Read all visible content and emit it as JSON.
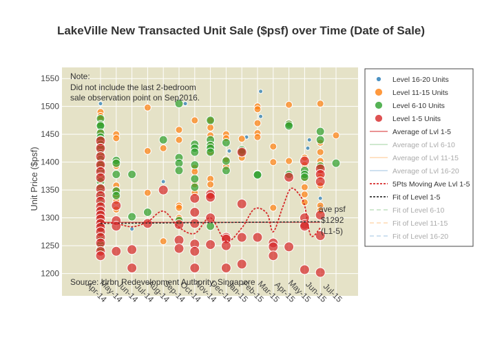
{
  "chart_data": {
    "type": "scatter",
    "title": "LakeVille New Transacted Unit Sale ($psf) over Time (Date of Sale)",
    "ylabel": "Unit Price ($psf)",
    "xlabel": "",
    "ylim": [
      1160,
      1570
    ],
    "yticks": [
      1200,
      1250,
      1300,
      1350,
      1400,
      1450,
      1500,
      1550
    ],
    "x_categories": [
      "Apr-14",
      "May-14",
      "Jun-14",
      "Jul-14",
      "Aug-14",
      "Sep-14",
      "Oct-14",
      "Nov-14",
      "Dec-14",
      "Jan-15",
      "Feb-15",
      "Mar-15",
      "Apr-15",
      "May-15",
      "Jun-15",
      "Jul-15"
    ],
    "background_color": "#e5e2c7",
    "note": {
      "line1": "Note:",
      "line2": "Did not include the last 2-bedroom",
      "line3": "sale observation point on Sep2016."
    },
    "source": "Source: Urbn Redevelopment Authority, Singapore",
    "annotation": {
      "line1": "ave psf",
      "line2": "$1292",
      "line3": "(L1-5)"
    },
    "average_lvl_1_5": 1292,
    "series": [
      {
        "name": "Level 16-20 Units",
        "color": "#1f77b4",
        "size": 3,
        "points": [
          [
            0.0,
            1505
          ],
          [
            5.4,
            1505
          ],
          [
            8.2,
            1420
          ],
          [
            9.3,
            1445
          ],
          [
            10.2,
            1527
          ],
          [
            10.2,
            1482
          ],
          [
            13.3,
            1440
          ],
          [
            13.2,
            1425
          ],
          [
            14.0,
            1335
          ],
          [
            2.0,
            1280
          ],
          [
            4.0,
            1365
          ],
          [
            12.0,
            1468
          ],
          [
            14.0,
            1320
          ]
        ]
      },
      {
        "name": "Level 11-15 Units",
        "color": "#ff7f0e",
        "size": 5,
        "points": [
          [
            0.0,
            1490
          ],
          [
            0.0,
            1483
          ],
          [
            0.0,
            1478
          ],
          [
            0.0,
            1470
          ],
          [
            0.0,
            1455
          ],
          [
            0.0,
            1440
          ],
          [
            0.0,
            1425
          ],
          [
            0.0,
            1418
          ],
          [
            0.0,
            1395
          ],
          [
            0.0,
            1370
          ],
          [
            0.0,
            1360
          ],
          [
            0.0,
            1345
          ],
          [
            0.0,
            1325
          ],
          [
            0.0,
            1305
          ],
          [
            0.0,
            1285
          ],
          [
            0.0,
            1270
          ],
          [
            0.0,
            1255
          ],
          [
            0.0,
            1240
          ],
          [
            1.0,
            1450
          ],
          [
            1.0,
            1443
          ],
          [
            1.0,
            1400
          ],
          [
            1.0,
            1393
          ],
          [
            1.0,
            1358
          ],
          [
            1.0,
            1350
          ],
          [
            1.0,
            1340
          ],
          [
            1.0,
            1330
          ],
          [
            1.0,
            1315
          ],
          [
            3.0,
            1498
          ],
          [
            3.0,
            1420
          ],
          [
            3.0,
            1345
          ],
          [
            4.0,
            1425
          ],
          [
            4.0,
            1258
          ],
          [
            5.0,
            1458
          ],
          [
            5.0,
            1440
          ],
          [
            5.0,
            1322
          ],
          [
            5.0,
            1318
          ],
          [
            5.0,
            1300
          ],
          [
            6.0,
            1475
          ],
          [
            6.0,
            1390
          ],
          [
            6.0,
            1383
          ],
          [
            6.0,
            1360
          ],
          [
            6.0,
            1345
          ],
          [
            7.0,
            1475
          ],
          [
            7.0,
            1462
          ],
          [
            7.0,
            1448
          ],
          [
            7.0,
            1432
          ],
          [
            7.0,
            1418
          ],
          [
            7.0,
            1370
          ],
          [
            7.0,
            1360
          ],
          [
            7.0,
            1340
          ],
          [
            8.0,
            1450
          ],
          [
            8.0,
            1443
          ],
          [
            8.0,
            1405
          ],
          [
            8.0,
            1392
          ],
          [
            9.0,
            1442
          ],
          [
            9.0,
            1418
          ],
          [
            9.0,
            1408
          ],
          [
            10.0,
            1500
          ],
          [
            10.0,
            1495
          ],
          [
            10.0,
            1470
          ],
          [
            10.0,
            1452
          ],
          [
            10.0,
            1445
          ],
          [
            11.0,
            1428
          ],
          [
            11.0,
            1400
          ],
          [
            11.0,
            1318
          ],
          [
            12.0,
            1503
          ],
          [
            12.0,
            1470
          ],
          [
            12.0,
            1402
          ],
          [
            13.0,
            1408
          ],
          [
            13.0,
            1395
          ],
          [
            13.0,
            1372
          ],
          [
            13.0,
            1355
          ],
          [
            13.0,
            1342
          ],
          [
            13.0,
            1328
          ],
          [
            14.0,
            1505
          ],
          [
            14.0,
            1435
          ],
          [
            14.0,
            1418
          ],
          [
            14.0,
            1402
          ],
          [
            14.0,
            1395
          ],
          [
            14.0,
            1380
          ],
          [
            14.0,
            1373
          ],
          [
            14.0,
            1358
          ],
          [
            14.0,
            1322
          ],
          [
            14.0,
            1313
          ],
          [
            15.0,
            1448
          ]
        ]
      },
      {
        "name": "Level 6-10 Units",
        "color": "#2ca02c",
        "size": 6,
        "points": [
          [
            0.0,
            1478
          ],
          [
            0.0,
            1467
          ],
          [
            0.0,
            1465
          ],
          [
            0.0,
            1452
          ],
          [
            0.0,
            1445
          ],
          [
            0.0,
            1440
          ],
          [
            0.0,
            1432
          ],
          [
            0.0,
            1425
          ],
          [
            0.0,
            1415
          ],
          [
            0.0,
            1405
          ],
          [
            0.0,
            1395
          ],
          [
            0.0,
            1385
          ],
          [
            0.0,
            1375
          ],
          [
            0.0,
            1365
          ],
          [
            0.0,
            1355
          ],
          [
            0.0,
            1345
          ],
          [
            0.0,
            1335
          ],
          [
            0.0,
            1325
          ],
          [
            0.0,
            1312
          ],
          [
            0.0,
            1300
          ],
          [
            0.0,
            1292
          ],
          [
            0.0,
            1283
          ],
          [
            0.0,
            1275
          ],
          [
            0.0,
            1268
          ],
          [
            0.0,
            1260
          ],
          [
            0.0,
            1252
          ],
          [
            0.0,
            1245
          ],
          [
            1.0,
            1403
          ],
          [
            1.0,
            1398
          ],
          [
            1.0,
            1378
          ],
          [
            1.0,
            1348
          ],
          [
            1.0,
            1340
          ],
          [
            2.0,
            1378
          ],
          [
            2.0,
            1302
          ],
          [
            3.0,
            1310
          ],
          [
            4.0,
            1440
          ],
          [
            5.0,
            1505
          ],
          [
            5.0,
            1408
          ],
          [
            5.0,
            1398
          ],
          [
            5.0,
            1385
          ],
          [
            5.0,
            1295
          ],
          [
            6.0,
            1432
          ],
          [
            6.0,
            1425
          ],
          [
            6.0,
            1418
          ],
          [
            6.0,
            1395
          ],
          [
            6.0,
            1370
          ],
          [
            6.0,
            1355
          ],
          [
            7.0,
            1475
          ],
          [
            7.0,
            1440
          ],
          [
            7.0,
            1430
          ],
          [
            7.0,
            1425
          ],
          [
            7.0,
            1418
          ],
          [
            7.0,
            1285
          ],
          [
            8.0,
            1435
          ],
          [
            8.0,
            1402
          ],
          [
            8.0,
            1385
          ],
          [
            9.0,
            1422
          ],
          [
            9.0,
            1418
          ],
          [
            10.0,
            1378
          ],
          [
            10.0,
            1377
          ],
          [
            12.0,
            1468
          ],
          [
            12.0,
            1465
          ],
          [
            12.0,
            1378
          ],
          [
            13.0,
            1385
          ],
          [
            13.0,
            1378
          ],
          [
            13.0,
            1373
          ],
          [
            14.0,
            1455
          ],
          [
            14.0,
            1440
          ],
          [
            14.0,
            1393
          ],
          [
            15.0,
            1398
          ]
        ]
      },
      {
        "name": "Level 1-5 Units",
        "color": "#d62728",
        "size": 7,
        "points": [
          [
            0.0,
            1438
          ],
          [
            0.0,
            1425
          ],
          [
            0.0,
            1410
          ],
          [
            0.0,
            1395
          ],
          [
            0.0,
            1383
          ],
          [
            0.0,
            1372
          ],
          [
            0.0,
            1352
          ],
          [
            0.0,
            1340
          ],
          [
            0.0,
            1330
          ],
          [
            0.0,
            1320
          ],
          [
            0.0,
            1312
          ],
          [
            0.0,
            1305
          ],
          [
            0.0,
            1298
          ],
          [
            0.0,
            1290
          ],
          [
            0.0,
            1283
          ],
          [
            0.0,
            1275
          ],
          [
            0.0,
            1265
          ],
          [
            0.0,
            1255
          ],
          [
            0.0,
            1240
          ],
          [
            0.0,
            1232
          ],
          [
            1.0,
            1322
          ],
          [
            1.0,
            1295
          ],
          [
            1.0,
            1285
          ],
          [
            1.0,
            1240
          ],
          [
            2.0,
            1243
          ],
          [
            2.0,
            1210
          ],
          [
            3.0,
            1290
          ],
          [
            4.0,
            1350
          ],
          [
            5.0,
            1288
          ],
          [
            5.0,
            1260
          ],
          [
            5.0,
            1245
          ],
          [
            6.0,
            1335
          ],
          [
            6.0,
            1310
          ],
          [
            6.0,
            1290
          ],
          [
            6.0,
            1253
          ],
          [
            6.0,
            1240
          ],
          [
            6.0,
            1210
          ],
          [
            7.0,
            1342
          ],
          [
            7.0,
            1337
          ],
          [
            7.0,
            1300
          ],
          [
            7.0,
            1252
          ],
          [
            8.0,
            1265
          ],
          [
            8.0,
            1262
          ],
          [
            8.0,
            1250
          ],
          [
            8.0,
            1210
          ],
          [
            9.0,
            1418
          ],
          [
            9.0,
            1325
          ],
          [
            9.0,
            1265
          ],
          [
            9.0,
            1217
          ],
          [
            10.0,
            1265
          ],
          [
            11.0,
            1255
          ],
          [
            11.0,
            1248
          ],
          [
            11.0,
            1232
          ],
          [
            12.0,
            1373
          ],
          [
            12.0,
            1248
          ],
          [
            13.0,
            1402
          ],
          [
            13.0,
            1300
          ],
          [
            13.0,
            1288
          ],
          [
            13.0,
            1285
          ],
          [
            13.0,
            1207
          ],
          [
            14.0,
            1388
          ],
          [
            14.0,
            1378
          ],
          [
            14.0,
            1365
          ],
          [
            14.0,
            1305
          ],
          [
            14.0,
            1268
          ],
          [
            14.0,
            1202
          ]
        ]
      }
    ],
    "moving_average": {
      "name": "5Pts Moving Ave Lvl 1-5",
      "color": "#d62728",
      "points": [
        [
          0,
          1292
        ],
        [
          1,
          1290
        ],
        [
          2,
          1284
        ],
        [
          3,
          1293
        ],
        [
          4,
          1312
        ],
        [
          5,
          1283
        ],
        [
          6,
          1272
        ],
        [
          7,
          1300
        ],
        [
          8,
          1258
        ],
        [
          9,
          1282
        ],
        [
          9.8,
          1316
        ],
        [
          10.6,
          1308
        ],
        [
          11,
          1275
        ],
        [
          11.6,
          1319
        ],
        [
          12.1,
          1352
        ],
        [
          12.6,
          1344
        ],
        [
          13.0,
          1322
        ],
        [
          13.4,
          1268
        ],
        [
          14.0,
          1282
        ]
      ]
    },
    "fit_level_1_5": {
      "name": "Fit of Level 1-5",
      "color": "#333333",
      "y_start": 1290,
      "y_end": 1293
    },
    "legend": {
      "position": "right",
      "items": [
        {
          "label": "Level 16-20 Units",
          "kind": "dot",
          "color": "#1f77b4",
          "muted": false
        },
        {
          "label": "Level 11-15 Units",
          "kind": "dot",
          "color": "#ff7f0e",
          "muted": false
        },
        {
          "label": "Level 6-10 Units",
          "kind": "dot",
          "color": "#2ca02c",
          "muted": false
        },
        {
          "label": "Level 1-5 Units",
          "kind": "dot",
          "color": "#d62728",
          "muted": false
        },
        {
          "label": "Average of Lvl 1-5",
          "kind": "line",
          "color": "#d62728",
          "muted": false
        },
        {
          "label": "Average of Lvl 6-10",
          "kind": "line",
          "color": "#9fd09f",
          "muted": true
        },
        {
          "label": "Average of Lvl 11-15",
          "kind": "line",
          "color": "#ffc48a",
          "muted": true
        },
        {
          "label": "Average of Lvl 16-20",
          "kind": "line",
          "color": "#9cc2e0",
          "muted": true
        },
        {
          "label": "5Pts Moving Ave Lvl 1-5",
          "kind": "dotted",
          "color": "#d62728",
          "muted": false
        },
        {
          "label": "Fit of Level 1-5",
          "kind": "dotted",
          "color": "#333333",
          "muted": false
        },
        {
          "label": "Fit of Level 6-10",
          "kind": "dash",
          "color": "#9fd09f",
          "muted": true
        },
        {
          "label": "Fit of Level 11-15",
          "kind": "dash",
          "color": "#ffc48a",
          "muted": true
        },
        {
          "label": "Fit of Level 16-20",
          "kind": "dash",
          "color": "#9cc2e0",
          "muted": true
        }
      ]
    }
  }
}
